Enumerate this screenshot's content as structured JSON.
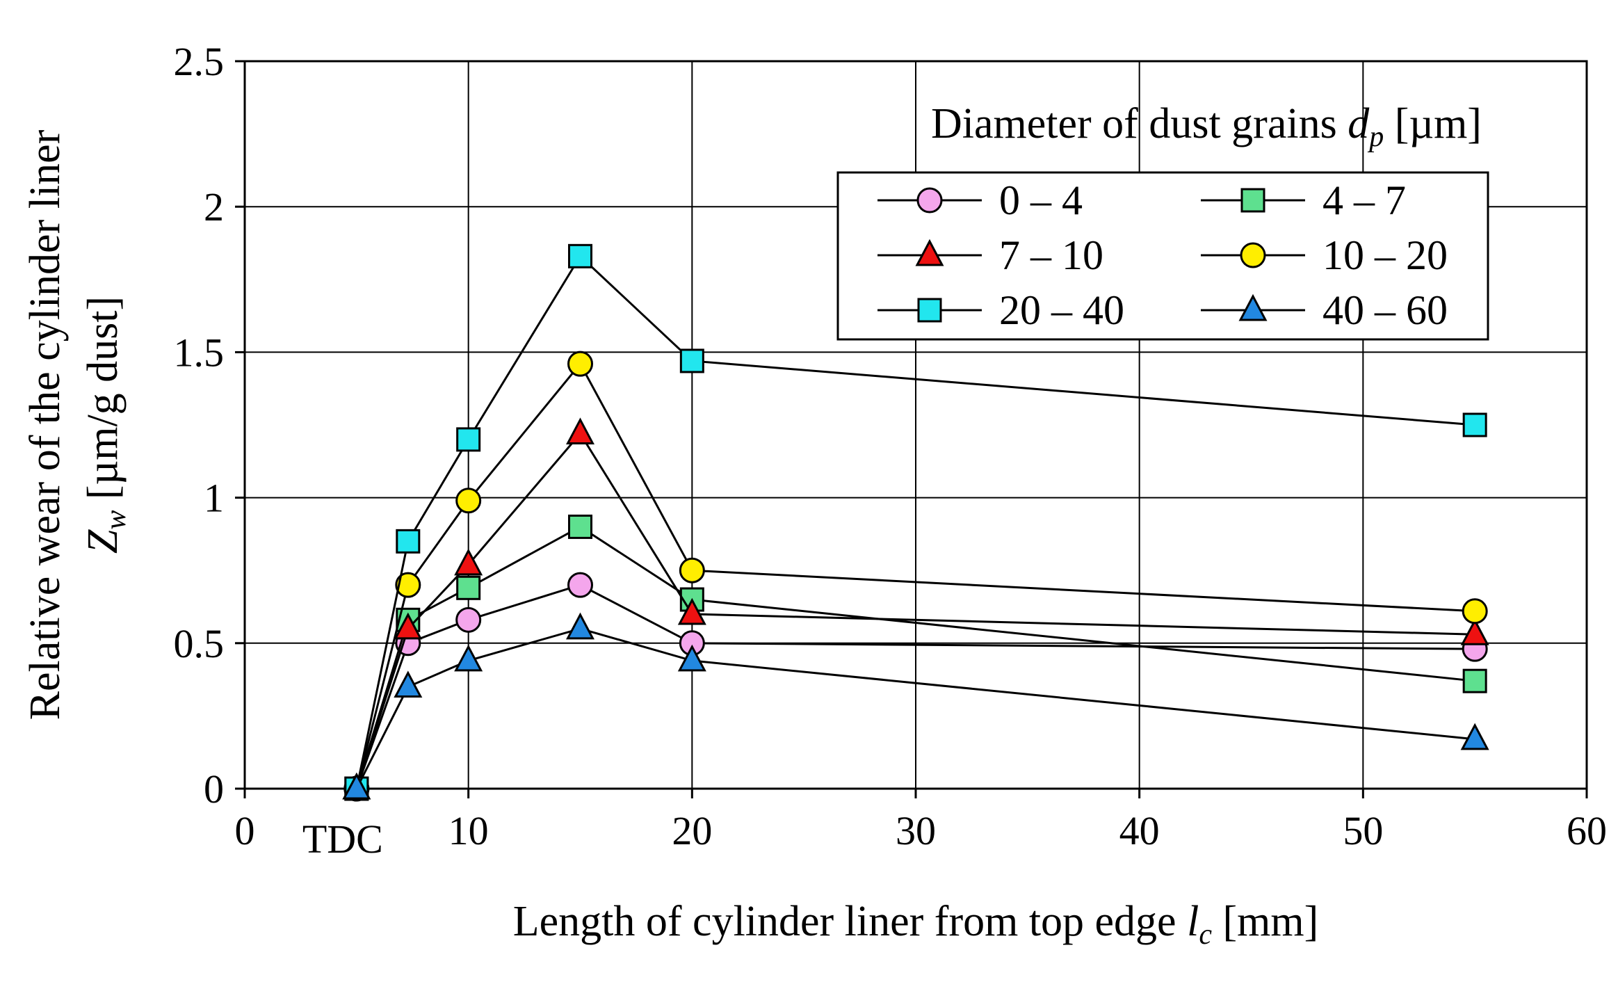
{
  "chart_data": {
    "type": "line",
    "x_axis": {
      "label_main": "Length of cylinder liner from top edge ",
      "label_symbol": "l",
      "label_sub": "c",
      "label_unit": " [mm]",
      "range": [
        0,
        60
      ],
      "ticks": [
        0,
        10,
        20,
        30,
        40,
        50,
        60
      ],
      "tick_labels": [
        "0",
        "10",
        "20",
        "30",
        "40",
        "50",
        "60"
      ],
      "extra_label": {
        "text": "TDC",
        "x": 5
      }
    },
    "y_axis": {
      "label_line1": "Relative wear of the cylinder liner",
      "label_symbol": "Z",
      "label_sub": "w",
      "label_unit": " [µm/g dust]",
      "range": [
        0,
        2.5
      ],
      "ticks": [
        0,
        0.5,
        1,
        1.5,
        2,
        2.5
      ],
      "tick_labels": [
        "0",
        "0.5",
        "1",
        "1.5",
        "2",
        "2.5"
      ]
    },
    "grid": true,
    "legend": {
      "title_main": "Diameter of dust grains ",
      "title_symbol": "d",
      "title_sub": "p",
      "title_unit": " [µm]",
      "placement": "top-right"
    },
    "series": [
      {
        "name": "0 – 4",
        "marker": "circle",
        "color": "#f4a6ec",
        "x": [
          5,
          7.3,
          10,
          15,
          20,
          55
        ],
        "y": [
          0,
          0.5,
          0.58,
          0.7,
          0.5,
          0.48
        ]
      },
      {
        "name": "4 – 7",
        "marker": "square",
        "color": "#5ee08f",
        "x": [
          5,
          7.3,
          10,
          15,
          20,
          55
        ],
        "y": [
          0,
          0.58,
          0.69,
          0.9,
          0.65,
          0.37
        ]
      },
      {
        "name": "7 – 10",
        "marker": "triangle",
        "color": "#ee1111",
        "x": [
          5,
          7.3,
          10,
          15,
          20,
          55
        ],
        "y": [
          0,
          0.55,
          0.77,
          1.22,
          0.6,
          0.53
        ]
      },
      {
        "name": "10 – 20",
        "marker": "circle",
        "color": "#ffee00",
        "x": [
          5,
          7.3,
          10,
          15,
          20,
          55
        ],
        "y": [
          0,
          0.7,
          0.99,
          1.46,
          0.75,
          0.61
        ]
      },
      {
        "name": "20 – 40",
        "marker": "square",
        "color": "#22e6ee",
        "x": [
          5,
          7.3,
          10,
          15,
          20,
          55
        ],
        "y": [
          0,
          0.85,
          1.2,
          1.83,
          1.47,
          1.25
        ]
      },
      {
        "name": "40 – 60",
        "marker": "triangle",
        "color": "#2288e0",
        "x": [
          5,
          7.3,
          10,
          15,
          20,
          55
        ],
        "y": [
          0,
          0.35,
          0.44,
          0.55,
          0.44,
          0.17
        ]
      }
    ]
  }
}
